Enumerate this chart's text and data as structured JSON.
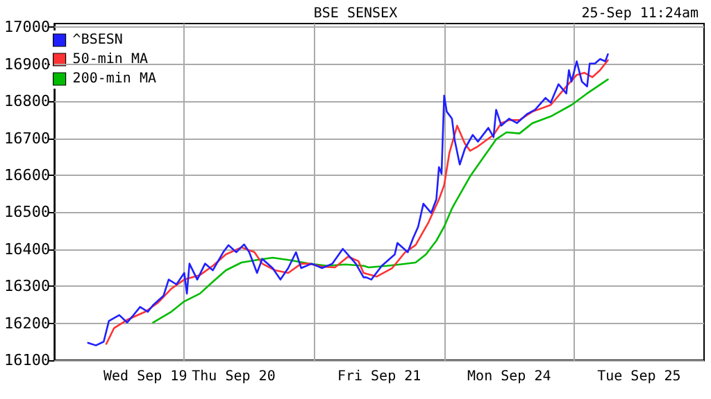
{
  "chart_data": {
    "type": "line",
    "title": "BSE SENSEX",
    "subtitle": "25-Sep 11:24am",
    "categories": [
      null,
      null,
      null,
      null,
      null,
      null,
      null,
      null,
      null,
      null,
      null,
      null,
      null,
      null,
      null,
      null,
      null,
      null,
      null,
      null,
      null,
      null,
      null,
      null,
      null,
      null,
      null,
      null,
      null,
      null,
      null,
      null,
      null,
      null,
      null,
      "Wed Sep 19",
      null,
      null,
      null,
      null,
      null,
      null,
      null,
      null,
      null,
      null,
      null,
      null,
      null,
      null,
      null,
      null,
      null,
      null,
      null,
      null,
      null,
      null,
      null,
      null,
      null,
      null,
      null,
      null,
      null,
      null,
      null,
      null,
      null,
      "Thu Sep 20",
      null,
      null,
      null,
      null,
      null,
      null,
      null,
      null,
      null,
      null,
      null,
      null,
      null,
      null,
      null,
      null,
      null,
      null,
      null,
      null,
      null,
      null,
      null,
      null,
      null,
      null,
      null,
      null,
      null,
      null,
      null,
      null,
      null,
      null,
      null,
      null,
      null,
      null,
      null,
      null,
      null,
      null,
      null,
      null,
      null,
      null,
      null,
      null,
      null,
      null,
      null,
      null,
      null,
      null,
      null,
      "Fri Sep 21",
      null,
      null,
      null,
      null,
      null,
      null,
      null,
      null,
      null,
      null,
      null,
      null,
      null,
      null,
      null,
      null,
      null,
      null,
      null,
      null,
      null,
      null,
      null,
      null,
      null,
      null,
      null,
      null,
      null,
      null,
      null,
      null,
      null,
      null,
      null,
      null,
      null,
      null,
      null,
      null,
      null,
      null,
      null,
      null,
      null,
      null,
      null,
      null,
      null,
      "Mon Sep 24",
      null,
      null,
      null,
      null,
      null,
      null,
      null,
      null,
      null,
      null,
      null,
      null,
      null,
      null,
      null,
      null,
      null,
      null,
      null,
      null,
      null,
      null,
      null,
      null,
      null,
      null,
      null,
      null,
      null,
      null,
      null,
      null,
      null,
      null,
      null,
      null,
      null,
      null,
      null,
      null,
      null,
      null,
      null,
      null,
      null,
      null,
      null,
      null,
      null,
      "Tue Sep 25",
      null,
      null,
      null,
      null,
      null,
      null,
      null,
      null,
      null,
      null,
      null,
      null,
      null,
      null,
      null,
      null,
      null,
      null,
      null,
      null,
      null,
      null,
      null,
      null,
      null
    ],
    "ylim": [
      16100,
      17010
    ],
    "yticks": [
      16100,
      16200,
      16300,
      16400,
      16500,
      16600,
      16700,
      16800,
      16900,
      17000
    ],
    "grid": true,
    "legend": "top left",
    "marker": "none",
    "line_style": "solid",
    "series": [
      {
        "name": "^BSESN",
        "color": "#2020ff",
        "values": [
          null,
          null,
          null,
          null,
          null,
          null,
          null,
          null,
          null,
          null,
          null,
          null,
          null,
          16147,
          null,
          null,
          16140,
          null,
          null,
          16150,
          null,
          16206,
          null,
          null,
          null,
          16222,
          null,
          null,
          16202,
          null,
          16218,
          null,
          null,
          16244,
          null,
          null,
          16231,
          null,
          16249,
          null,
          null,
          null,
          16274,
          null,
          16318,
          null,
          null,
          16305,
          null,
          null,
          16336,
          16280,
          16361,
          null,
          null,
          16318,
          null,
          null,
          16361,
          null,
          null,
          16343,
          null,
          null,
          null,
          16392,
          null,
          16411,
          null,
          null,
          16392,
          null,
          null,
          16413,
          null,
          16392,
          null,
          null,
          16336,
          null,
          16374,
          null,
          null,
          null,
          16349,
          null,
          null,
          16318,
          null,
          null,
          16349,
          null,
          null,
          16392,
          null,
          16349,
          null,
          null,
          null,
          16361,
          null,
          null,
          null,
          16349,
          null,
          null,
          null,
          16361,
          null,
          null,
          null,
          16401,
          null,
          null,
          null,
          null,
          16361,
          null,
          null,
          16324,
          16324,
          null,
          16318,
          null,
          null,
          null,
          16355,
          null,
          null,
          null,
          null,
          16386,
          16417,
          null,
          null,
          null,
          16392,
          null,
          16429,
          null,
          16461,
          null,
          16523,
          null,
          null,
          16498,
          null,
          16535,
          16622,
          16604,
          16815,
          16772,
          null,
          16753,
          16697,
          null,
          16629,
          null,
          16672,
          null,
          null,
          16709,
          null,
          16691,
          null,
          null,
          null,
          16728,
          null,
          16703,
          16777,
          null,
          16734,
          null,
          null,
          16753,
          null,
          null,
          16741,
          null,
          null,
          null,
          16766,
          null,
          null,
          16777,
          null,
          null,
          null,
          16809,
          null,
          16796,
          null,
          null,
          16846,
          null,
          null,
          16821,
          16884,
          16853,
          null,
          16908,
          null,
          16853,
          null,
          16840,
          16902,
          null,
          16902,
          null,
          16914,
          null,
          16908,
          16927,
          null,
          null,
          null,
          null,
          null,
          null,
          null,
          null,
          null,
          null,
          null,
          null,
          null,
          null,
          null,
          null,
          null,
          null,
          null,
          null,
          null,
          null,
          null,
          null,
          null,
          null,
          null,
          null,
          null,
          null,
          null,
          null,
          null,
          null,
          null,
          null,
          null
        ]
      },
      {
        "name": "50-min MA",
        "color": "#ff3333",
        "values": [
          null,
          null,
          null,
          null,
          null,
          null,
          null,
          null,
          null,
          null,
          null,
          null,
          null,
          null,
          null,
          null,
          null,
          null,
          null,
          null,
          16144,
          null,
          null,
          16187,
          null,
          null,
          null,
          null,
          16209,
          null,
          null,
          null,
          null,
          null,
          null,
          16231,
          null,
          null,
          null,
          null,
          16256,
          null,
          null,
          null,
          null,
          16293,
          null,
          null,
          null,
          null,
          16318,
          null,
          null,
          null,
          null,
          null,
          16330,
          null,
          null,
          null,
          null,
          16355,
          null,
          null,
          null,
          null,
          16386,
          null,
          null,
          null,
          null,
          null,
          16405,
          null,
          null,
          null,
          null,
          16392,
          null,
          null,
          16361,
          null,
          null,
          null,
          null,
          16343,
          null,
          null,
          null,
          null,
          16336,
          null,
          null,
          null,
          null,
          16361,
          null,
          null,
          16361,
          null,
          null,
          null,
          null,
          16353,
          null,
          null,
          null,
          null,
          16351,
          null,
          null,
          null,
          null,
          16380,
          null,
          null,
          null,
          16368,
          null,
          16336,
          null,
          null,
          null,
          null,
          16326,
          null,
          null,
          null,
          null,
          null,
          16349,
          null,
          null,
          null,
          null,
          16392,
          null,
          null,
          null,
          16411,
          null,
          null,
          null,
          null,
          16473,
          null,
          null,
          null,
          16535,
          null,
          16573,
          null,
          16660,
          null,
          16709,
          16734,
          null,
          null,
          16685,
          null,
          16666,
          null,
          null,
          16678,
          null,
          null,
          null,
          null,
          null,
          16709,
          null,
          null,
          16741,
          null,
          null,
          16749,
          null,
          null,
          null,
          16749,
          null,
          null,
          null,
          null,
          16772,
          null,
          null,
          null,
          null,
          null,
          null,
          16790,
          null,
          null,
          null,
          null,
          null,
          16840,
          null,
          null,
          null,
          16871,
          null,
          null,
          16877,
          null,
          null,
          16865,
          null,
          null,
          16884,
          null,
          null,
          16911,
          null,
          null,
          null,
          null,
          null,
          null,
          null,
          null,
          null,
          null,
          null,
          null,
          null,
          null,
          null,
          null,
          null,
          null,
          null,
          null,
          null,
          null,
          null,
          null,
          null,
          null,
          null,
          null,
          null,
          null,
          null,
          null,
          null,
          null,
          null,
          null,
          null
        ]
      },
      {
        "name": "200-min MA",
        "color": "#00bb00",
        "values": [
          null,
          null,
          null,
          null,
          null,
          null,
          null,
          null,
          null,
          null,
          null,
          null,
          null,
          null,
          null,
          null,
          null,
          null,
          null,
          null,
          null,
          null,
          null,
          null,
          null,
          null,
          null,
          null,
          null,
          null,
          null,
          null,
          null,
          null,
          null,
          null,
          null,
          null,
          16202,
          null,
          null,
          null,
          null,
          null,
          null,
          16231,
          null,
          null,
          null,
          null,
          16259,
          null,
          null,
          null,
          null,
          null,
          16280,
          null,
          null,
          null,
          null,
          16312,
          null,
          null,
          null,
          null,
          16343,
          null,
          null,
          null,
          null,
          null,
          16364,
          null,
          null,
          null,
          null,
          null,
          16371,
          null,
          null,
          null,
          null,
          null,
          16377,
          null,
          null,
          null,
          null,
          null,
          null,
          16370,
          null,
          null,
          null,
          null,
          null,
          null,
          16361,
          null,
          null,
          null,
          null,
          null,
          null,
          16355,
          null,
          null,
          null,
          null,
          null,
          null,
          16359,
          null,
          null,
          null,
          null,
          null,
          null,
          16355,
          null,
          16351,
          null,
          null,
          null,
          null,
          null,
          null,
          16355,
          null,
          null,
          null,
          null,
          16359,
          null,
          null,
          null,
          null,
          null,
          16364,
          null,
          null,
          null,
          16386,
          null,
          null,
          null,
          16423,
          null,
          null,
          16461,
          null,
          null,
          16510,
          16523,
          null,
          null,
          null,
          null,
          null,
          16597,
          null,
          null,
          null,
          null,
          16647,
          null,
          null,
          null,
          null,
          16697,
          null,
          null,
          null,
          16716,
          null,
          null,
          null,
          null,
          16713,
          null,
          null,
          null,
          null,
          16741,
          null,
          null,
          null,
          null,
          null,
          null,
          16759,
          null,
          null,
          null,
          null,
          null,
          null,
          null,
          16790,
          null,
          null,
          null,
          null,
          null,
          16821,
          null,
          null,
          null,
          null,
          null,
          null,
          null,
          16859,
          null,
          null,
          null,
          null,
          null,
          null,
          null,
          null,
          null,
          null,
          null,
          null,
          null,
          null,
          null,
          null,
          null,
          null,
          null,
          null,
          null,
          null,
          null,
          null,
          null,
          null,
          null,
          null,
          null,
          null,
          null,
          null,
          null,
          null,
          null,
          null,
          null
        ]
      }
    ]
  }
}
